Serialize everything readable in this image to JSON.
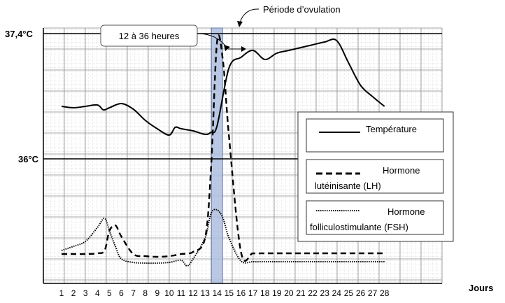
{
  "chart_data": {
    "type": "line",
    "xlabel": "Jours",
    "x": [
      1,
      2,
      3,
      4,
      5,
      6,
      7,
      8,
      9,
      10,
      11,
      12,
      13,
      14,
      15,
      16,
      17,
      18,
      19,
      20,
      21,
      22,
      23,
      24,
      25,
      26,
      27,
      28
    ],
    "y_reference_labels": [
      "37,4°C",
      "36°C"
    ],
    "highlight_band": {
      "x": 14,
      "label": "Période d’ovulation"
    },
    "duration_annotation": "12 à 36 heures",
    "series": [
      {
        "name": "Température",
        "style": "solid",
        "x": [
          1,
          2,
          3,
          4,
          4.5,
          5,
          6,
          7,
          8,
          9,
          10,
          10.5,
          11,
          12,
          13,
          13.5,
          14,
          15,
          16,
          17,
          18,
          19,
          20,
          21,
          22,
          23,
          24,
          25,
          26,
          27,
          28
        ],
        "y": [
          152,
          154,
          152,
          150,
          157,
          154,
          148,
          156,
          172,
          184,
          193,
          182,
          184,
          187,
          192,
          189,
          180,
          97,
          82,
          72,
          85,
          76,
          72,
          68,
          64,
          60,
          58,
          90,
          122,
          138,
          152
        ]
      },
      {
        "name": "Hormone lutéinisante (LH)",
        "style": "dashed",
        "x": [
          1,
          2,
          3,
          4,
          4.6,
          5,
          5.5,
          6,
          7,
          8,
          9,
          10,
          11,
          12,
          13,
          13.5,
          14,
          14.5,
          15,
          16,
          17,
          18,
          19,
          20,
          21,
          22,
          23,
          24,
          25,
          26,
          27,
          28
        ],
        "y": [
          363,
          363,
          363,
          362,
          358,
          330,
          322,
          338,
          363,
          366,
          367,
          366,
          363,
          360,
          340,
          240,
          60,
          88,
          195,
          360,
          362,
          362,
          362,
          362,
          362,
          362,
          362,
          362,
          362,
          362,
          362,
          362
        ]
      },
      {
        "name": "Hormone folliculostimulante (FSH)",
        "style": "dotted",
        "x": [
          1,
          2,
          3,
          4,
          4.6,
          5,
          5.5,
          6,
          7,
          8,
          9,
          10,
          11,
          11.5,
          12,
          13,
          13.5,
          14,
          14.5,
          15,
          16,
          17,
          18,
          19,
          20,
          21,
          22,
          23,
          24,
          25,
          26,
          27,
          28
        ],
        "y": [
          358,
          352,
          345,
          325,
          312,
          330,
          352,
          370,
          375,
          376,
          376,
          375,
          372,
          380,
          370,
          340,
          305,
          300,
          312,
          340,
          373,
          374,
          374,
          374,
          374,
          374,
          374,
          374,
          374,
          374,
          374,
          374,
          374
        ]
      }
    ],
    "legend": {
      "position": "right",
      "entries": [
        {
          "text": "Température"
        },
        {
          "line1": "Hormone",
          "line2": "lutéinisante (LH)"
        },
        {
          "line1": "Hormone",
          "line2": "folliculostimulante (FSH)"
        }
      ]
    },
    "grid": true
  }
}
